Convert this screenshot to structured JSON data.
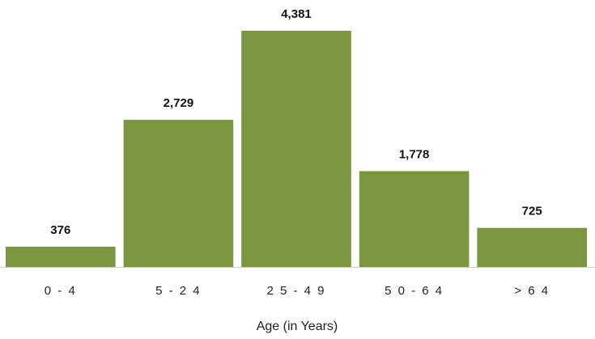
{
  "chart_data": {
    "type": "bar",
    "categories": [
      "0 - 4",
      "5 - 2 4",
      "2 5 - 4 9",
      "5 0 - 6 4",
      "> 6 4"
    ],
    "values": [
      376,
      2729,
      4381,
      1778,
      725
    ],
    "value_labels": [
      "376",
      "2,729",
      "4,381",
      "1,778",
      "725"
    ],
    "xlabel": "Age (in Years)",
    "ylabel": "",
    "ylim": [
      0,
      4381
    ],
    "grid": false,
    "legend": "none",
    "bar_color": "#7a963e",
    "axis_color": "#d0d0d0"
  }
}
